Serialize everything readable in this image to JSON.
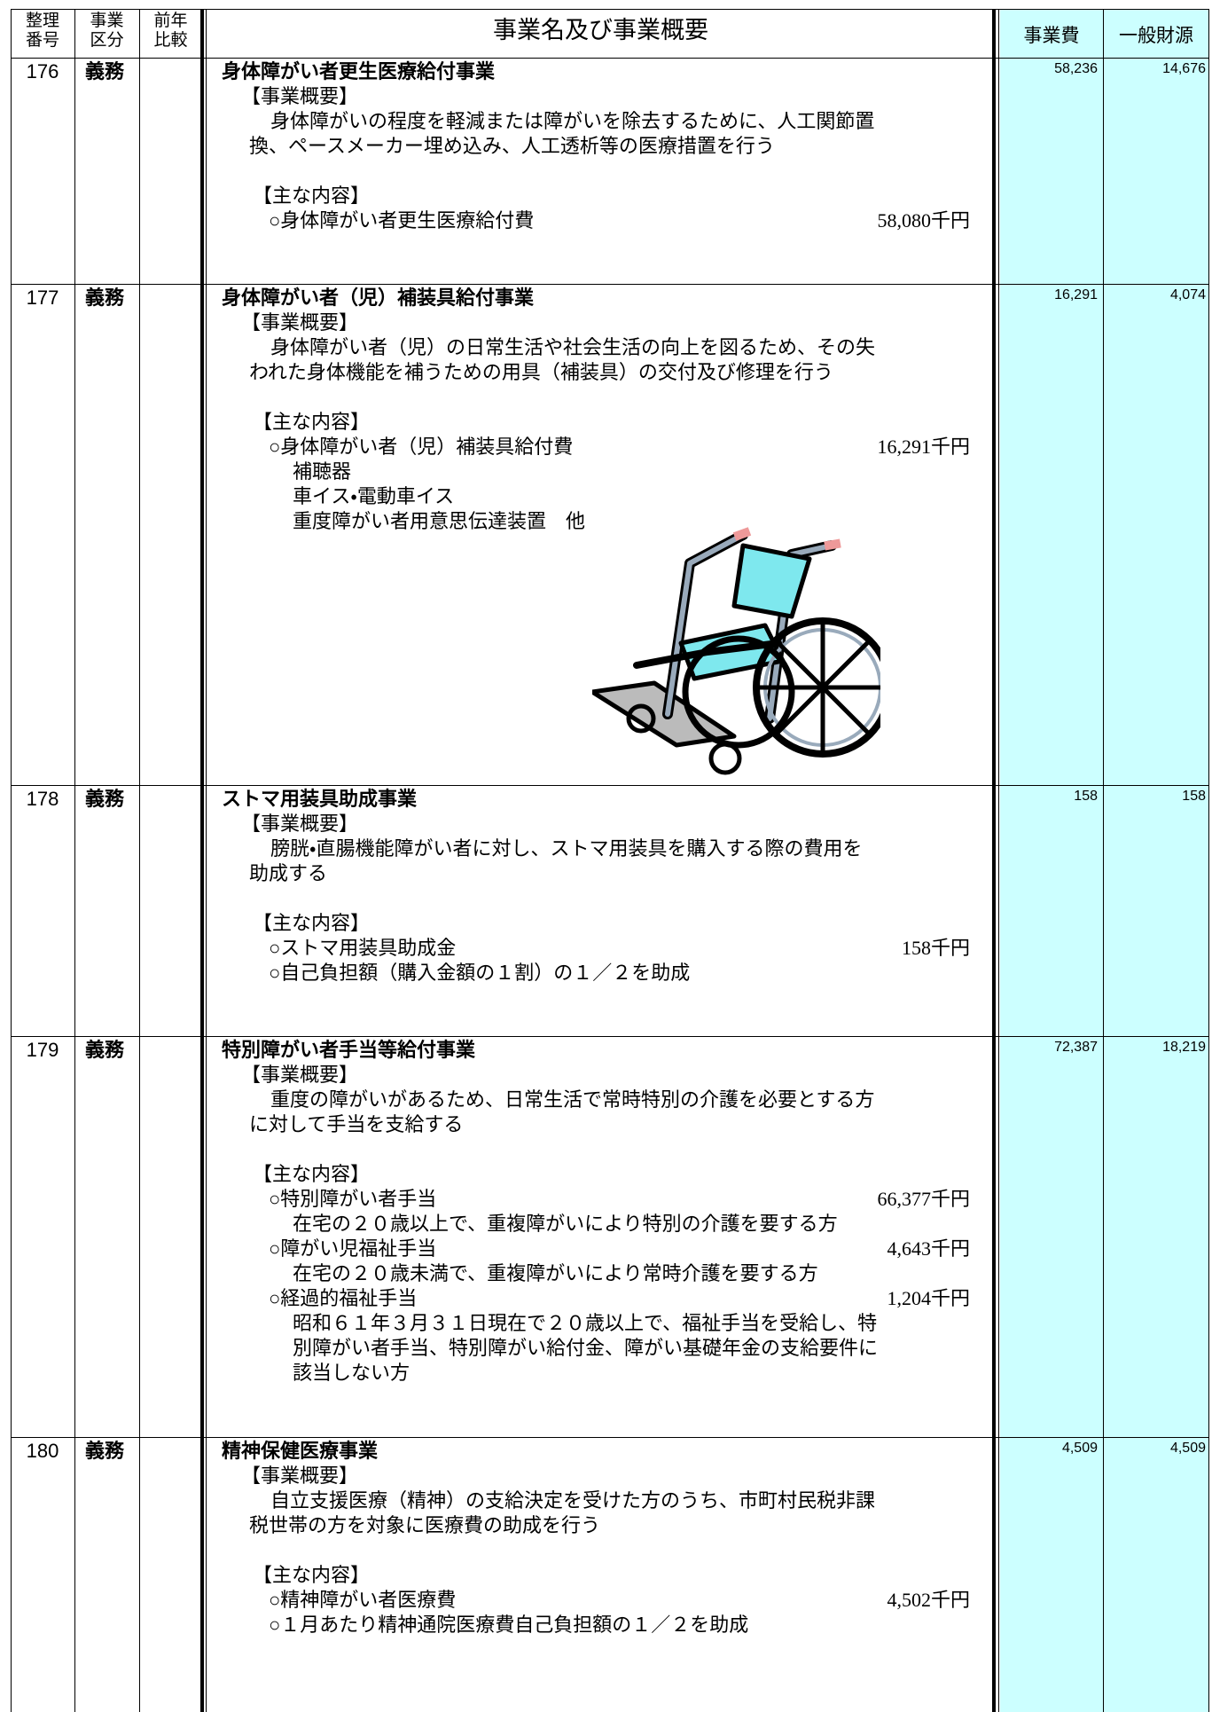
{
  "header": {
    "number": [
      "整理",
      "番号"
    ],
    "kind": [
      "事業",
      "区分"
    ],
    "previous": [
      "前年",
      "比較"
    ],
    "content": "事業名及び事業概要",
    "cost": "事業費",
    "general": "一般財源"
  },
  "rows": [
    {
      "number": "176",
      "kind": "義務",
      "title": "身体障がい者更生医療給付事業",
      "overview_label": "【事業概要】",
      "overview": [
        "身体障がいの程度を軽減または障がいを除去するために、人工関節置",
        "換、ペースメーカー埋め込み、人工透析等の医療措置を行う"
      ],
      "main_label": "【主な内容】",
      "items": [
        {
          "name": "○身体障がい者更生医療給付費",
          "amount": "58,080千円"
        }
      ],
      "cost": "58,236",
      "general": "14,676"
    },
    {
      "number": "177",
      "kind": "義務",
      "title": "身体障がい者（児）補装具給付事業",
      "overview_label": "【事業概要】",
      "overview": [
        "身体障がい者（児）の日常生活や社会生活の向上を図るため、その失",
        "われた身体機能を補うための用具（補装具）の交付及び修理を行う"
      ],
      "main_label": "【主な内容】",
      "items": [
        {
          "name": "○身体障がい者（児）補装具給付費",
          "amount": "16,291千円",
          "notes": [
            "補聴器",
            "車イス・電動車イス",
            "重度障がい者用意思伝達装置　他"
          ]
        }
      ],
      "cost": "16,291",
      "general": "4,074"
    },
    {
      "number": "178",
      "kind": "義務",
      "title": "ストマ用装具助成事業",
      "overview_label": "【事業概要】",
      "overview": [
        "膀胱・直腸機能障がい者に対し、ストマ用装具を購入する際の費用を",
        "助成する"
      ],
      "main_label": "【主な内容】",
      "items": [
        {
          "name": "○ストマ用装具助成金",
          "amount": "158千円"
        },
        {
          "name": "○自己負担額（購入金額の１割）の１／２を助成"
        }
      ],
      "cost": "158",
      "general": "158"
    },
    {
      "number": "179",
      "kind": "義務",
      "title": "特別障がい者手当等給付事業",
      "overview_label": "【事業概要】",
      "overview": [
        "重度の障がいがあるため、日常生活で常時特別の介護を必要とする方",
        "に対して手当を支給する"
      ],
      "main_label": "【主な内容】",
      "items": [
        {
          "name": "○特別障がい者手当",
          "amount": "66,377千円",
          "notes": [
            "在宅の２０歳以上で、重複障がいにより特別の介護を要する方"
          ]
        },
        {
          "name": "○障がい児福祉手当",
          "amount": "4,643千円",
          "notes": [
            "在宅の２０歳未満で、重複障がいにより常時介護を要する方"
          ]
        },
        {
          "name": "○経過的福祉手当",
          "amount": "1,204千円",
          "notes": [
            "昭和６１年３月３１日現在で２０歳以上で、福祉手当を受給し、特",
            "別障がい者手当、特別障がい給付金、障がい基礎年金の支給要件に",
            "該当しない方"
          ]
        }
      ],
      "cost": "72,387",
      "general": "18,219"
    },
    {
      "number": "180",
      "kind": "義務",
      "title": "精神保健医療事業",
      "overview_label": "【事業概要】",
      "overview": [
        "自立支援医療（精神）の支給決定を受けた方のうち、市町村民税非課",
        "税世帯の方を対象に医療費の助成を行う"
      ],
      "main_label": "【主な内容】",
      "items": [
        {
          "name": "○精神障がい者医療費",
          "amount": "4,502千円"
        },
        {
          "name": "○１月あたり精神通院医療費自己負担額の１／２を助成"
        }
      ],
      "cost": "4,509",
      "general": "4,509"
    }
  ]
}
